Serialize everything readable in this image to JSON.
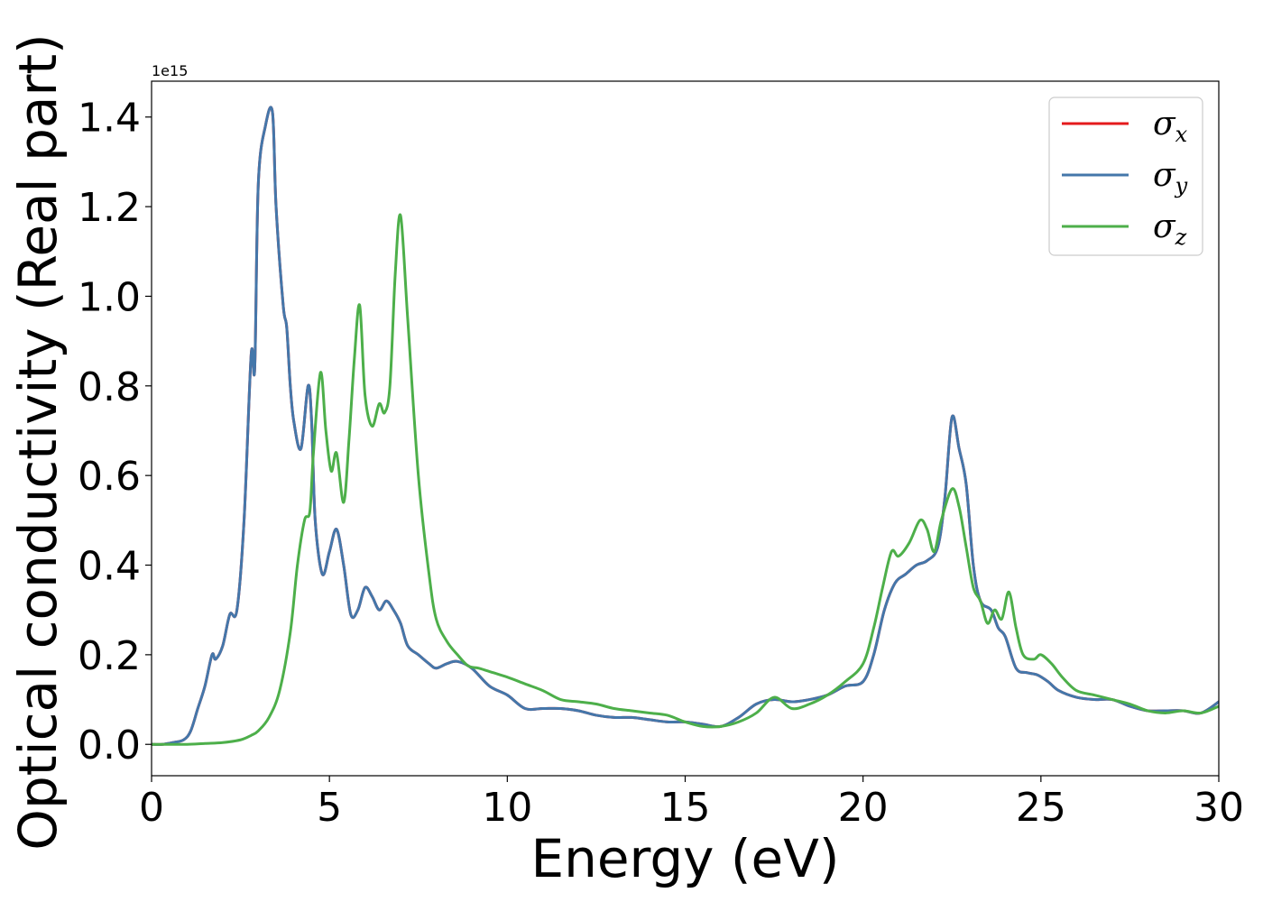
{
  "chart_data": {
    "type": "line",
    "title": "",
    "xlabel": "Energy (eV)",
    "ylabel": "Optical conductivity (Real part)",
    "y_offset_label": "1e15",
    "xlim": [
      0,
      30
    ],
    "ylim": [
      -0.07,
      1.48
    ],
    "xticks": [
      0,
      5,
      10,
      15,
      20,
      25,
      30
    ],
    "xtick_labels": [
      "0",
      "5",
      "10",
      "15",
      "20",
      "25",
      "30"
    ],
    "yticks": [
      0.0,
      0.2,
      0.4,
      0.6,
      0.8,
      1.0,
      1.2,
      1.4
    ],
    "ytick_labels": [
      "0.0",
      "0.2",
      "0.4",
      "0.6",
      "0.8",
      "1.0",
      "1.2",
      "1.4"
    ],
    "grid": false,
    "legend": "top-right",
    "series": [
      {
        "name": "σx",
        "symbol": "σ",
        "subscript": "x",
        "color": "#e41a1c",
        "x": [
          0,
          0.3,
          0.6,
          0.9,
          1.1,
          1.3,
          1.5,
          1.7,
          1.8,
          2.0,
          2.2,
          2.4,
          2.6,
          2.8,
          2.9,
          3.0,
          3.2,
          3.4,
          3.5,
          3.7,
          3.8,
          3.9,
          4.0,
          4.2,
          4.4,
          4.5,
          4.6,
          4.8,
          5.0,
          5.2,
          5.4,
          5.6,
          5.8,
          6.0,
          6.2,
          6.4,
          6.6,
          6.8,
          7.0,
          7.2,
          7.5,
          7.8,
          8.0,
          8.3,
          8.6,
          9.0,
          9.5,
          10.0,
          10.5,
          11.0,
          11.5,
          12.0,
          12.5,
          13.0,
          13.5,
          14.0,
          14.5,
          15.0,
          15.5,
          16.0,
          16.5,
          17.0,
          17.5,
          18.0,
          18.5,
          19.0,
          19.5,
          20.0,
          20.3,
          20.6,
          20.9,
          21.2,
          21.5,
          21.8,
          22.1,
          22.3,
          22.5,
          22.7,
          22.9,
          23.1,
          23.3,
          23.6,
          23.8,
          24.0,
          24.3,
          24.6,
          24.9,
          25.2,
          25.5,
          26.0,
          26.5,
          27.0,
          27.5,
          28.0,
          28.5,
          29.0,
          29.5,
          30.0
        ],
        "y": [
          0.0,
          0.0,
          0.004,
          0.01,
          0.03,
          0.08,
          0.13,
          0.2,
          0.19,
          0.22,
          0.29,
          0.3,
          0.5,
          0.87,
          0.84,
          1.25,
          1.38,
          1.41,
          1.2,
          0.98,
          0.93,
          0.8,
          0.72,
          0.66,
          0.8,
          0.72,
          0.5,
          0.38,
          0.43,
          0.48,
          0.4,
          0.29,
          0.3,
          0.35,
          0.33,
          0.3,
          0.32,
          0.3,
          0.27,
          0.22,
          0.2,
          0.18,
          0.17,
          0.18,
          0.185,
          0.17,
          0.13,
          0.11,
          0.08,
          0.08,
          0.08,
          0.075,
          0.065,
          0.06,
          0.06,
          0.055,
          0.05,
          0.05,
          0.045,
          0.04,
          0.06,
          0.09,
          0.1,
          0.095,
          0.1,
          0.11,
          0.13,
          0.14,
          0.2,
          0.3,
          0.36,
          0.38,
          0.4,
          0.41,
          0.44,
          0.55,
          0.73,
          0.66,
          0.58,
          0.4,
          0.32,
          0.3,
          0.26,
          0.24,
          0.17,
          0.16,
          0.155,
          0.14,
          0.12,
          0.105,
          0.1,
          0.1,
          0.085,
          0.075,
          0.075,
          0.075,
          0.07,
          0.095
        ]
      },
      {
        "name": "σy",
        "symbol": "σ",
        "subscript": "y",
        "color": "#4477aa",
        "x": [
          0,
          0.3,
          0.6,
          0.9,
          1.1,
          1.3,
          1.5,
          1.7,
          1.8,
          2.0,
          2.2,
          2.4,
          2.6,
          2.8,
          2.9,
          3.0,
          3.2,
          3.4,
          3.5,
          3.7,
          3.8,
          3.9,
          4.0,
          4.2,
          4.4,
          4.5,
          4.6,
          4.8,
          5.0,
          5.2,
          5.4,
          5.6,
          5.8,
          6.0,
          6.2,
          6.4,
          6.6,
          6.8,
          7.0,
          7.2,
          7.5,
          7.8,
          8.0,
          8.3,
          8.6,
          9.0,
          9.5,
          10.0,
          10.5,
          11.0,
          11.5,
          12.0,
          12.5,
          13.0,
          13.5,
          14.0,
          14.5,
          15.0,
          15.5,
          16.0,
          16.5,
          17.0,
          17.5,
          18.0,
          18.5,
          19.0,
          19.5,
          20.0,
          20.3,
          20.6,
          20.9,
          21.2,
          21.5,
          21.8,
          22.1,
          22.3,
          22.5,
          22.7,
          22.9,
          23.1,
          23.3,
          23.6,
          23.8,
          24.0,
          24.3,
          24.6,
          24.9,
          25.2,
          25.5,
          26.0,
          26.5,
          27.0,
          27.5,
          28.0,
          28.5,
          29.0,
          29.5,
          30.0
        ],
        "y": [
          0.0,
          0.0,
          0.004,
          0.01,
          0.03,
          0.08,
          0.13,
          0.2,
          0.19,
          0.22,
          0.29,
          0.3,
          0.5,
          0.87,
          0.84,
          1.25,
          1.38,
          1.41,
          1.2,
          0.98,
          0.93,
          0.8,
          0.72,
          0.66,
          0.8,
          0.72,
          0.5,
          0.38,
          0.43,
          0.48,
          0.4,
          0.29,
          0.3,
          0.35,
          0.33,
          0.3,
          0.32,
          0.3,
          0.27,
          0.22,
          0.2,
          0.18,
          0.17,
          0.18,
          0.185,
          0.17,
          0.13,
          0.11,
          0.08,
          0.08,
          0.08,
          0.075,
          0.065,
          0.06,
          0.06,
          0.055,
          0.05,
          0.05,
          0.045,
          0.04,
          0.06,
          0.09,
          0.1,
          0.095,
          0.1,
          0.11,
          0.13,
          0.14,
          0.2,
          0.3,
          0.36,
          0.38,
          0.4,
          0.41,
          0.44,
          0.55,
          0.73,
          0.66,
          0.58,
          0.4,
          0.32,
          0.3,
          0.26,
          0.24,
          0.17,
          0.16,
          0.155,
          0.14,
          0.12,
          0.105,
          0.1,
          0.1,
          0.085,
          0.075,
          0.075,
          0.075,
          0.07,
          0.095
        ]
      },
      {
        "name": "σz",
        "symbol": "σ",
        "subscript": "z",
        "color": "#4daf4a",
        "x": [
          0,
          0.5,
          1.0,
          1.5,
          2.0,
          2.5,
          2.8,
          3.0,
          3.3,
          3.6,
          3.9,
          4.1,
          4.3,
          4.45,
          4.55,
          4.75,
          4.9,
          5.05,
          5.2,
          5.4,
          5.55,
          5.7,
          5.85,
          6.0,
          6.2,
          6.4,
          6.55,
          6.7,
          6.85,
          7.0,
          7.2,
          7.5,
          7.8,
          8.0,
          8.3,
          8.6,
          8.9,
          9.2,
          9.6,
          10.0,
          10.5,
          11.0,
          11.5,
          12.0,
          12.5,
          13.0,
          13.5,
          14.0,
          14.5,
          15.0,
          15.5,
          16.0,
          16.5,
          17.0,
          17.5,
          18.0,
          18.5,
          19.0,
          19.5,
          20.0,
          20.3,
          20.55,
          20.8,
          21.0,
          21.3,
          21.6,
          21.8,
          22.0,
          22.2,
          22.5,
          22.7,
          22.9,
          23.1,
          23.3,
          23.5,
          23.7,
          23.9,
          24.1,
          24.3,
          24.5,
          24.8,
          25.0,
          25.3,
          25.6,
          26.0,
          26.5,
          27.0,
          27.5,
          28.0,
          28.5,
          29.0,
          29.5,
          30.0
        ],
        "y": [
          0.0,
          0.0,
          0.0,
          0.002,
          0.004,
          0.01,
          0.02,
          0.03,
          0.06,
          0.12,
          0.25,
          0.4,
          0.5,
          0.52,
          0.65,
          0.83,
          0.7,
          0.61,
          0.65,
          0.54,
          0.68,
          0.86,
          0.98,
          0.78,
          0.71,
          0.76,
          0.74,
          0.8,
          1.05,
          1.18,
          0.95,
          0.6,
          0.38,
          0.28,
          0.23,
          0.2,
          0.175,
          0.17,
          0.16,
          0.15,
          0.135,
          0.12,
          0.1,
          0.095,
          0.09,
          0.08,
          0.075,
          0.07,
          0.065,
          0.05,
          0.04,
          0.04,
          0.05,
          0.07,
          0.105,
          0.08,
          0.09,
          0.11,
          0.14,
          0.18,
          0.26,
          0.35,
          0.43,
          0.42,
          0.45,
          0.5,
          0.48,
          0.43,
          0.5,
          0.57,
          0.53,
          0.44,
          0.35,
          0.32,
          0.27,
          0.3,
          0.28,
          0.34,
          0.26,
          0.2,
          0.19,
          0.2,
          0.18,
          0.15,
          0.12,
          0.11,
          0.1,
          0.09,
          0.075,
          0.07,
          0.075,
          0.07,
          0.085
        ]
      }
    ]
  }
}
